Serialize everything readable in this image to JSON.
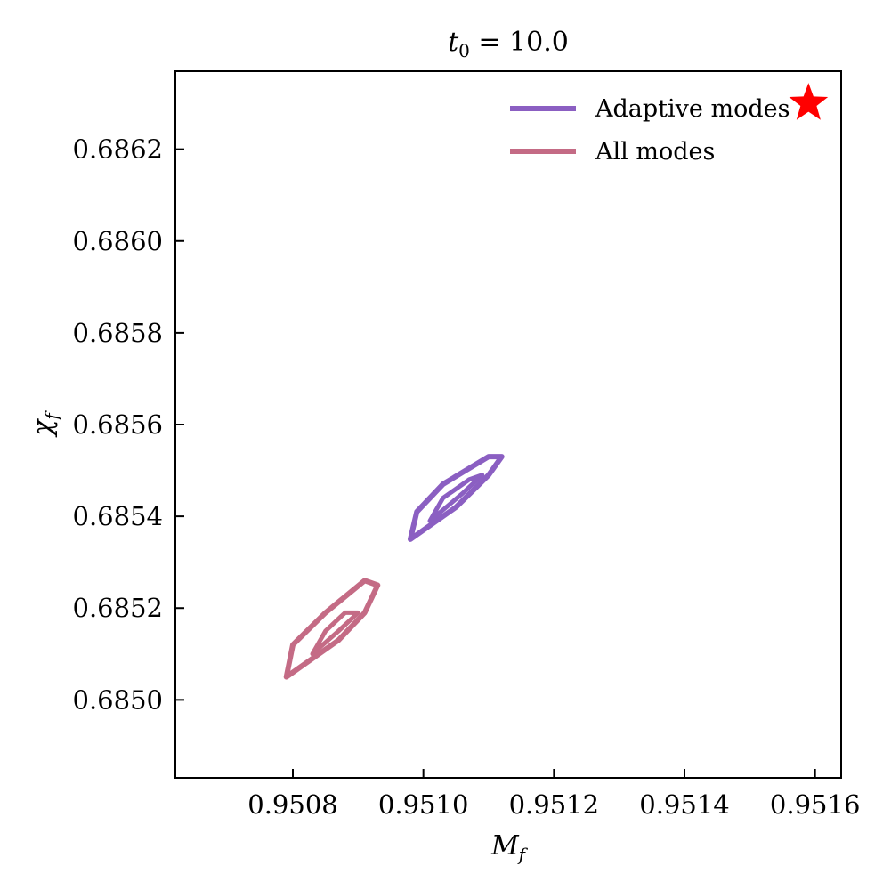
{
  "chart_data": {
    "type": "scatter",
    "title": {
      "var": "t",
      "sub": "0",
      "rest": " = 10.0"
    },
    "xlabel": {
      "var": "M",
      "sub": "f"
    },
    "ylabel": {
      "var": "χ",
      "sub": "f"
    },
    "xlim": [
      0.95062,
      0.95164
    ],
    "ylim": [
      0.68483,
      0.68637
    ],
    "x_ticks": [
      0.9508,
      0.951,
      0.9512,
      0.9514,
      0.9516
    ],
    "y_ticks": [
      0.685,
      0.6852,
      0.6854,
      0.6856,
      0.6858,
      0.686,
      0.6862
    ],
    "x_tick_labels": [
      "0.9508",
      "0.9510",
      "0.9512",
      "0.9514",
      "0.9516"
    ],
    "y_tick_labels": [
      "0.6850",
      "0.6852",
      "0.6854",
      "0.6856",
      "0.6858",
      "0.6860",
      "0.6862"
    ],
    "grid": false,
    "legend": "top-right",
    "series": [
      {
        "name": "Adaptive modes",
        "color": "#8b5fc2",
        "kind": "contour",
        "contours": [
          [
            [
              0.95098,
              0.68535
            ],
            [
              0.95105,
              0.68542
            ],
            [
              0.9511,
              0.68549
            ],
            [
              0.95112,
              0.68553
            ],
            [
              0.9511,
              0.68553
            ],
            [
              0.95103,
              0.68547
            ],
            [
              0.95099,
              0.68541
            ],
            [
              0.95098,
              0.68535
            ]
          ],
          [
            [
              0.95101,
              0.68539
            ],
            [
              0.95106,
              0.68545
            ],
            [
              0.95109,
              0.68549
            ],
            [
              0.95107,
              0.68548
            ],
            [
              0.95103,
              0.68544
            ],
            [
              0.95101,
              0.68539
            ]
          ]
        ]
      },
      {
        "name": "All modes",
        "color": "#c46b85",
        "kind": "contour",
        "contours": [
          [
            [
              0.95079,
              0.68505
            ],
            [
              0.95087,
              0.68513
            ],
            [
              0.95091,
              0.68519
            ],
            [
              0.95093,
              0.68525
            ],
            [
              0.95091,
              0.68526
            ],
            [
              0.95085,
              0.68519
            ],
            [
              0.9508,
              0.68512
            ],
            [
              0.95079,
              0.68505
            ]
          ],
          [
            [
              0.95083,
              0.6851
            ],
            [
              0.95087,
              0.68515
            ],
            [
              0.9509,
              0.68519
            ],
            [
              0.95088,
              0.68519
            ],
            [
              0.95085,
              0.68515
            ],
            [
              0.95083,
              0.6851
            ]
          ]
        ]
      }
    ],
    "markers": [
      {
        "name": "true value",
        "shape": "star",
        "color": "#ff0000",
        "x": 0.95159,
        "y": 0.6863
      }
    ]
  }
}
